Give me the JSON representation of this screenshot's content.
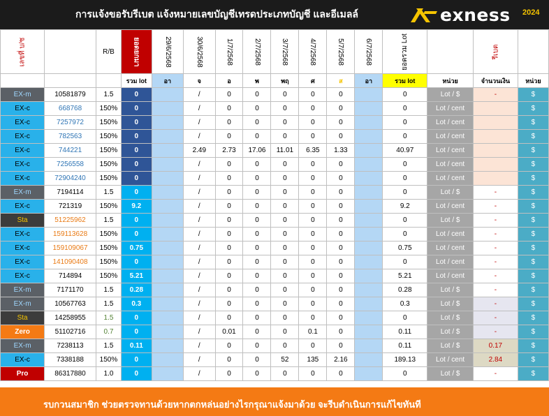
{
  "header": {
    "title": "การแจ้งขอรับรีเบต  แจ้งหมายเลขบัญชีเทรดประเภทบัญชี และอีเมลล์",
    "logo_text": "exness",
    "year": "2024"
  },
  "columns": {
    "type": "เลขที่ บ/ช",
    "rb": "R/B",
    "total_lot_v": "ยอดยกมา",
    "dates": [
      "29/6/2568",
      "30/6/2568",
      "1/7/2568",
      "2/7/2568",
      "3/7/2568",
      "4/7/2568",
      "5/7/2568",
      "6/7/2568"
    ],
    "sum_lot": "ยอดรวม Lot",
    "rebate": "รีเบต",
    "sub_lot": "รวม lot",
    "days": [
      "อา",
      "จ",
      "อ",
      "พ",
      "พฤ",
      "ศ",
      "ส",
      "อา"
    ],
    "sum_lot2": "รวม lot",
    "unit": "หน่วย",
    "amount": "จำนวนเงิน",
    "unit2": "หน่วย"
  },
  "rows": [
    {
      "type": "EX-m",
      "acct": "10581879",
      "rb": "1.5",
      "lot": "0",
      "d": [
        "/",
        "0",
        "0",
        "0",
        "0",
        "0"
      ],
      "sum": "0",
      "unit": "Lot / $",
      "amt": "-",
      "cur": "$"
    },
    {
      "type": "EX-c",
      "acct": "668768",
      "rb": "150%",
      "lot": "0",
      "d": [
        "/",
        "0",
        "0",
        "0",
        "0",
        "0"
      ],
      "sum": "0",
      "unit": "Lot / cent",
      "amt": "",
      "cur": "$"
    },
    {
      "type": "EX-c",
      "acct": "7257972",
      "rb": "150%",
      "lot": "0",
      "d": [
        "/",
        "0",
        "0",
        "0",
        "0",
        "0"
      ],
      "sum": "0",
      "unit": "Lot / cent",
      "amt": "",
      "cur": "$"
    },
    {
      "type": "EX-c",
      "acct": "782563",
      "rb": "150%",
      "lot": "0",
      "d": [
        "/",
        "0",
        "0",
        "0",
        "0",
        "0"
      ],
      "sum": "0",
      "unit": "Lot / cent",
      "amt": "",
      "cur": "$"
    },
    {
      "type": "EX-c",
      "acct": "744221",
      "rb": "150%",
      "lot": "0",
      "d": [
        "2.49",
        "2.73",
        "17.06",
        "11.01",
        "6.35",
        "1.33"
      ],
      "sum": "40.97",
      "unit": "Lot / cent",
      "amt": "",
      "cur": "$"
    },
    {
      "type": "EX-c",
      "acct": "7256558",
      "rb": "150%",
      "lot": "0",
      "d": [
        "/",
        "0",
        "0",
        "0",
        "0",
        "0"
      ],
      "sum": "0",
      "unit": "Lot / cent",
      "amt": "",
      "cur": "$"
    },
    {
      "type": "EX-c",
      "acct": "72904240",
      "rb": "150%",
      "lot": "0",
      "d": [
        "/",
        "0",
        "0",
        "0",
        "0",
        "0"
      ],
      "sum": "0",
      "unit": "Lot / cent",
      "amt": "",
      "cur": "$"
    },
    {
      "type": "EX-m",
      "acct": "7194114",
      "rb": "1.5",
      "lot": "0",
      "d": [
        "/",
        "0",
        "0",
        "0",
        "0",
        "0"
      ],
      "sum": "0",
      "unit": "Lot / $",
      "amt": "-",
      "cur": "$"
    },
    {
      "type": "EX-c",
      "acct": "721319",
      "rb": "150%",
      "lot": "9.2",
      "d": [
        "/",
        "0",
        "0",
        "0",
        "0",
        "0"
      ],
      "sum": "9.2",
      "unit": "Lot / cent",
      "amt": "-",
      "cur": "$"
    },
    {
      "type": "Sta",
      "acct": "51225962",
      "rb": "1.5",
      "lot": "0",
      "d": [
        "/",
        "0",
        "0",
        "0",
        "0",
        "0"
      ],
      "sum": "0",
      "unit": "Lot / $",
      "amt": "-",
      "cur": "$"
    },
    {
      "type": "EX-c",
      "acct": "159113628",
      "rb": "150%",
      "lot": "0",
      "d": [
        "/",
        "0",
        "0",
        "0",
        "0",
        "0"
      ],
      "sum": "0",
      "unit": "Lot / cent",
      "amt": "-",
      "cur": "$"
    },
    {
      "type": "EX-c",
      "acct": "159109067",
      "rb": "150%",
      "lot": "0.75",
      "d": [
        "/",
        "0",
        "0",
        "0",
        "0",
        "0"
      ],
      "sum": "0.75",
      "unit": "Lot / cent",
      "amt": "-",
      "cur": "$"
    },
    {
      "type": "EX-c",
      "acct": "141090408",
      "rb": "150%",
      "lot": "0",
      "d": [
        "/",
        "0",
        "0",
        "0",
        "0",
        "0"
      ],
      "sum": "0",
      "unit": "Lot / cent",
      "amt": "-",
      "cur": "$"
    },
    {
      "type": "EX-c",
      "acct": "714894",
      "rb": "150%",
      "lot": "5.21",
      "d": [
        "/",
        "0",
        "0",
        "0",
        "0",
        "0"
      ],
      "sum": "5.21",
      "unit": "Lot / cent",
      "amt": "-",
      "cur": "$"
    },
    {
      "type": "EX-m",
      "acct": "7171170",
      "rb": "1.5",
      "lot": "0.28",
      "d": [
        "/",
        "0",
        "0",
        "0",
        "0",
        "0"
      ],
      "sum": "0.28",
      "unit": "Lot / $",
      "amt": "-",
      "cur": "$"
    },
    {
      "type": "EX-m",
      "acct": "10567763",
      "rb": "1.5",
      "lot": "0.3",
      "d": [
        "/",
        "0",
        "0",
        "0",
        "0",
        "0"
      ],
      "sum": "0.3",
      "unit": "Lot / $",
      "amt": "-",
      "cur": "$"
    },
    {
      "type": "Sta",
      "acct": "14258955",
      "rb": "1.5",
      "lot": "0",
      "d": [
        "/",
        "0",
        "0",
        "0",
        "0",
        "0"
      ],
      "sum": "0",
      "unit": "Lot / $",
      "amt": "-",
      "cur": "$"
    },
    {
      "type": "Zero",
      "acct": "51102716",
      "rb": "0.7",
      "lot": "0",
      "d": [
        "/",
        "0.01",
        "0",
        "0",
        "0.1",
        "0"
      ],
      "sum": "0.11",
      "unit": "Lot / $",
      "amt": "-",
      "cur": "$"
    },
    {
      "type": "EX-m",
      "acct": "7238113",
      "rb": "1.5",
      "lot": "0.11",
      "d": [
        "/",
        "0",
        "0",
        "0",
        "0",
        "0"
      ],
      "sum": "0.11",
      "unit": "Lot / $",
      "amt": "0.17",
      "cur": "$"
    },
    {
      "type": "EX-c",
      "acct": "7338188",
      "rb": "150%",
      "lot": "0",
      "d": [
        "/",
        "0",
        "0",
        "52",
        "135",
        "2.16"
      ],
      "sum": "189.13",
      "unit": "Lot / cent",
      "amt": "2.84",
      "cur": "$"
    },
    {
      "type": "Pro",
      "acct": "86317880",
      "rb": "1.0",
      "lot": "0",
      "d": [
        "/",
        "0",
        "0",
        "0",
        "0",
        "0"
      ],
      "sum": "0",
      "unit": "Lot / $",
      "amt": "-",
      "cur": "$"
    }
  ],
  "footer": {
    "message": "รบกวนสมาชิก ช่วยตรวจทานด้วยหากตกหล่นอย่างไรกรุณาแจ้งมาด้วย จะรีบดำเนินการแก้ไขทันที"
  },
  "colors": {
    "exm": "#5b6066",
    "exc": "#29b1ea",
    "sta": "#3c3c3c",
    "zero": "#f47a14",
    "pro": "#c00000",
    "lot_dark": "#2f5597",
    "lot_light": "#00b0f0",
    "gray_unit": "#a6a6a6",
    "cur_col": "#4bacc6",
    "footer": "#f47a14"
  }
}
